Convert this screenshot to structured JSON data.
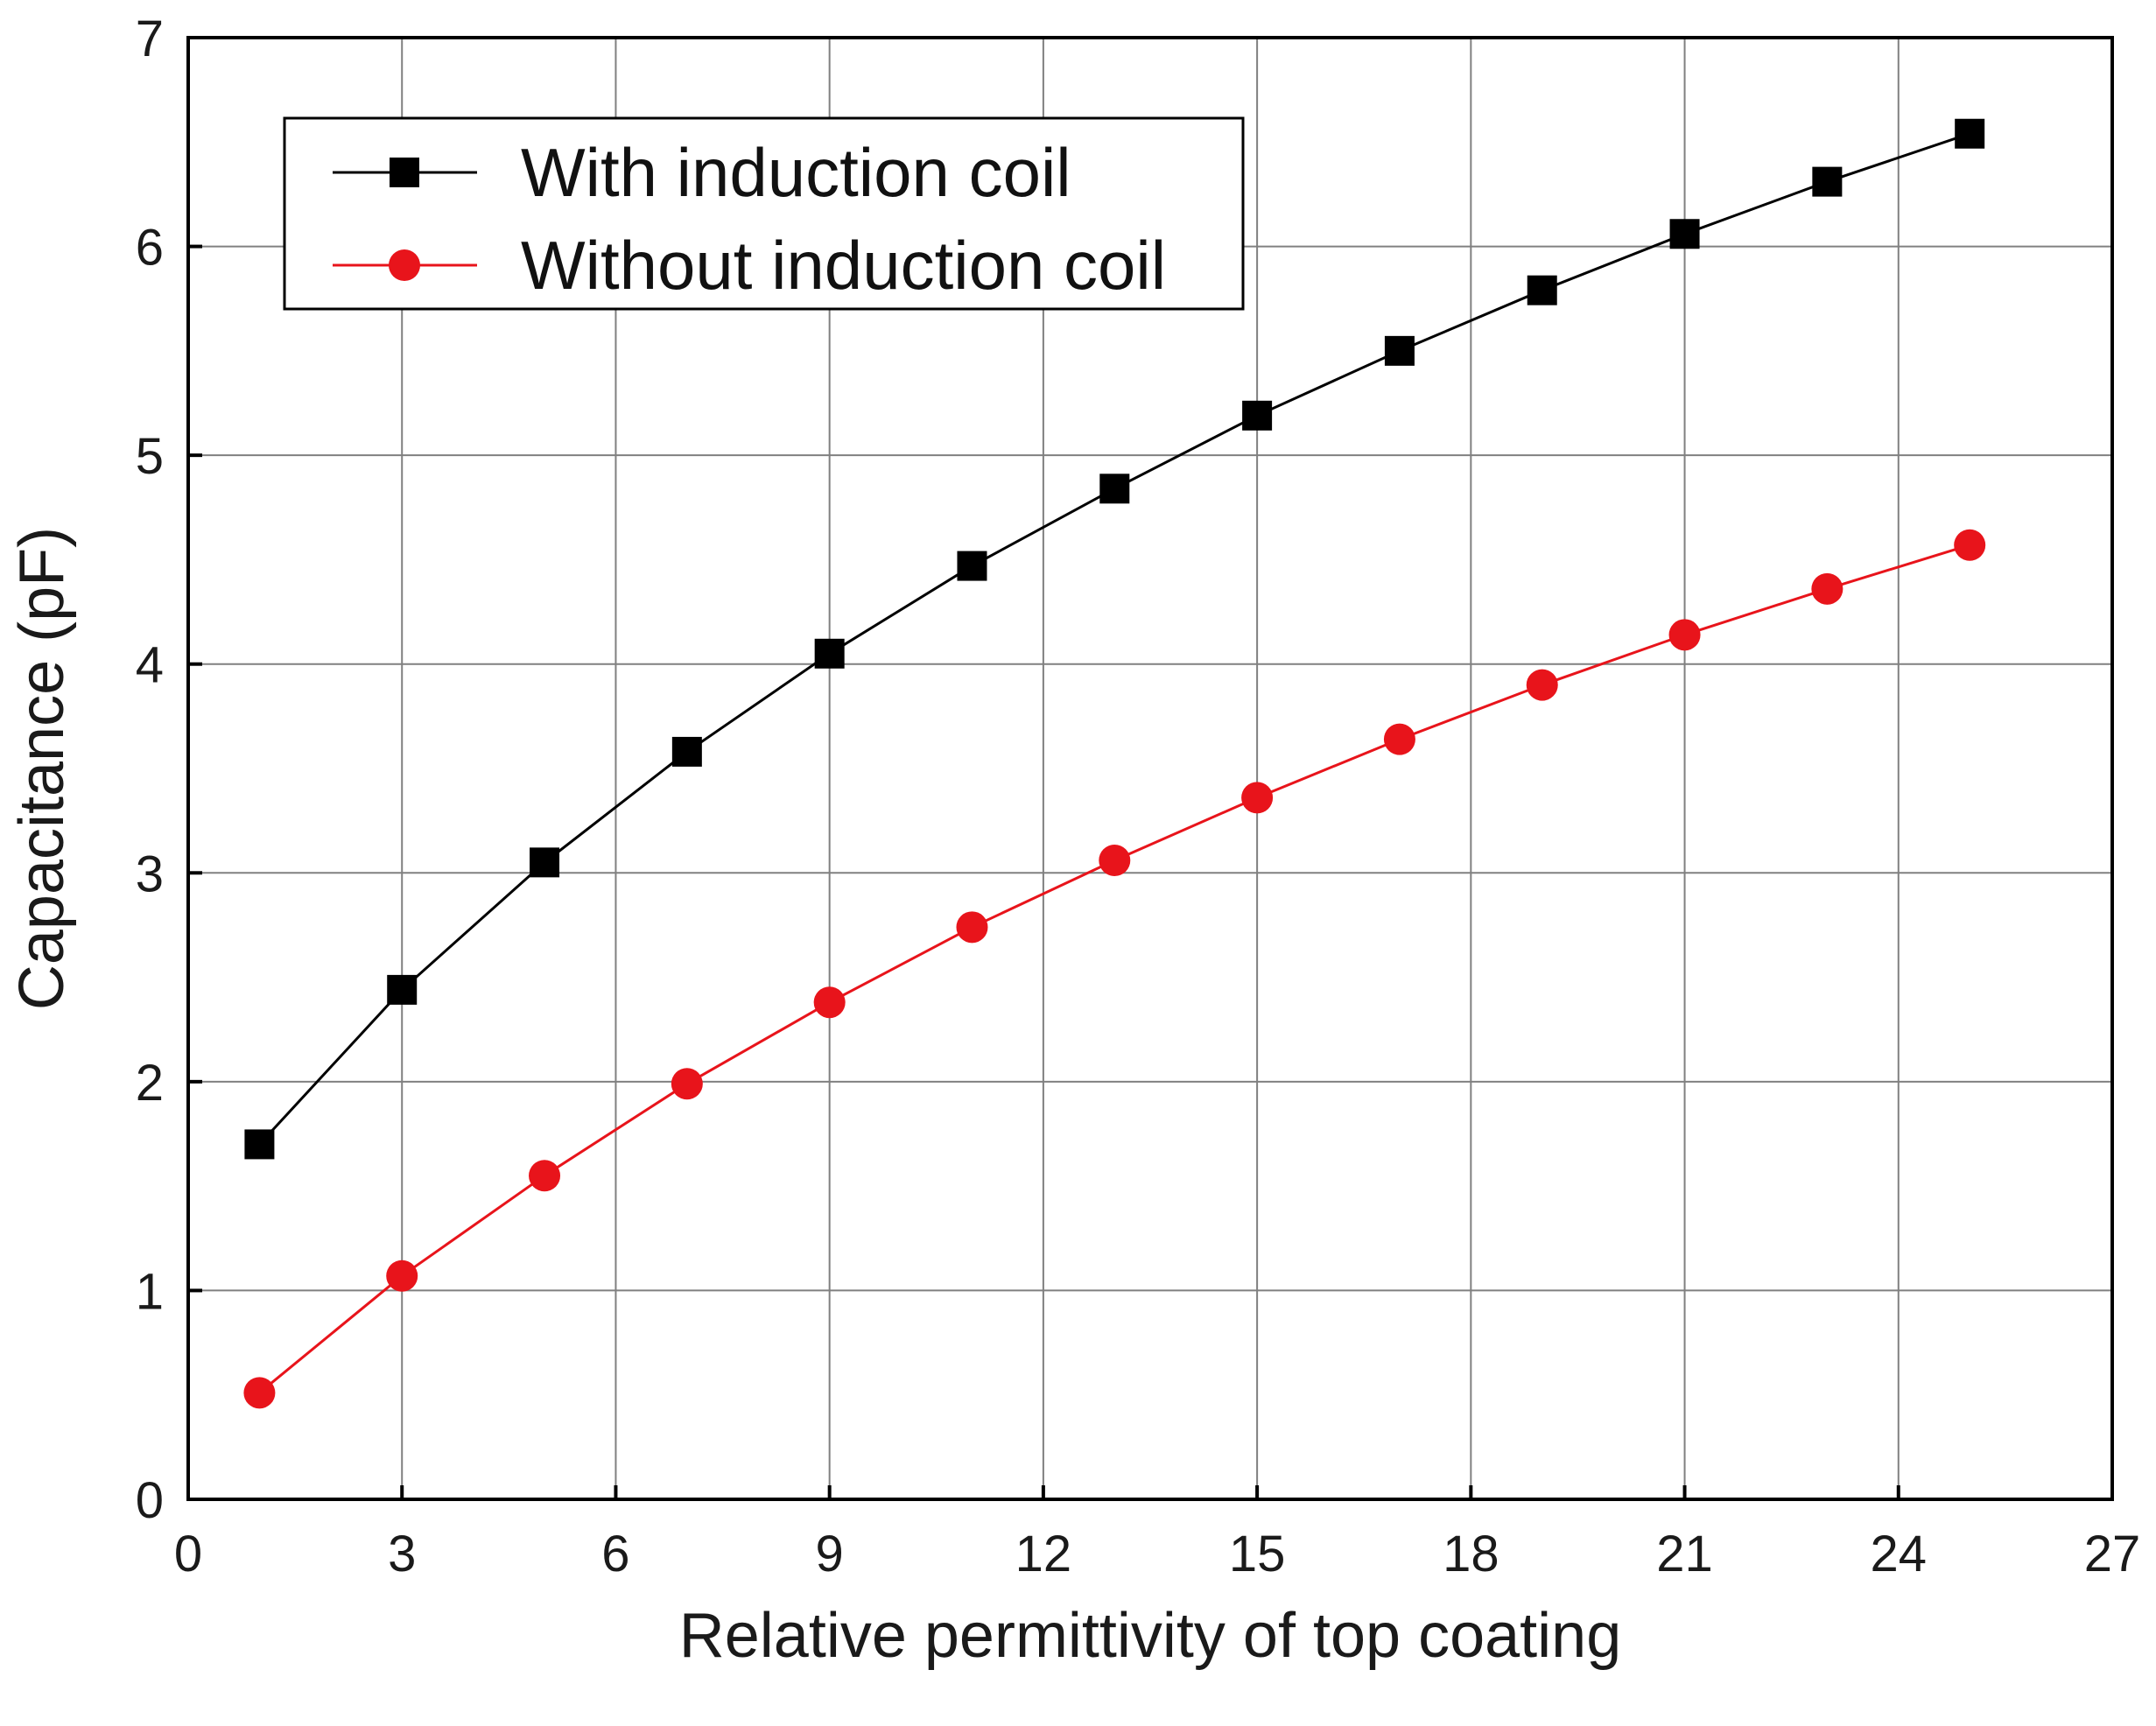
{
  "chart_data": {
    "type": "line",
    "title": "",
    "xlabel": "Relative permittivity of top coating",
    "ylabel": "Capacitance (pF)",
    "xlim": [
      0,
      27
    ],
    "ylim": [
      0,
      7
    ],
    "xticks": [
      0,
      3,
      6,
      9,
      12,
      15,
      18,
      21,
      24,
      27
    ],
    "yticks": [
      0,
      1,
      2,
      3,
      4,
      5,
      6,
      7
    ],
    "grid": true,
    "legend_position": "top-left",
    "x": [
      1,
      3,
      5,
      7,
      9,
      11,
      13,
      15,
      17,
      19,
      21,
      23,
      25
    ],
    "series": [
      {
        "name": "With induction coil",
        "color": "#000000",
        "marker": "square",
        "values": [
          1.7,
          2.44,
          3.05,
          3.58,
          4.05,
          4.47,
          4.84,
          5.19,
          5.5,
          5.79,
          6.06,
          6.31,
          6.54
        ]
      },
      {
        "name": "Without induction coil",
        "color": "#e8141b",
        "marker": "circle",
        "values": [
          0.51,
          1.07,
          1.55,
          1.99,
          2.38,
          2.74,
          3.06,
          3.36,
          3.64,
          3.9,
          4.14,
          4.36,
          4.57
        ]
      }
    ]
  }
}
